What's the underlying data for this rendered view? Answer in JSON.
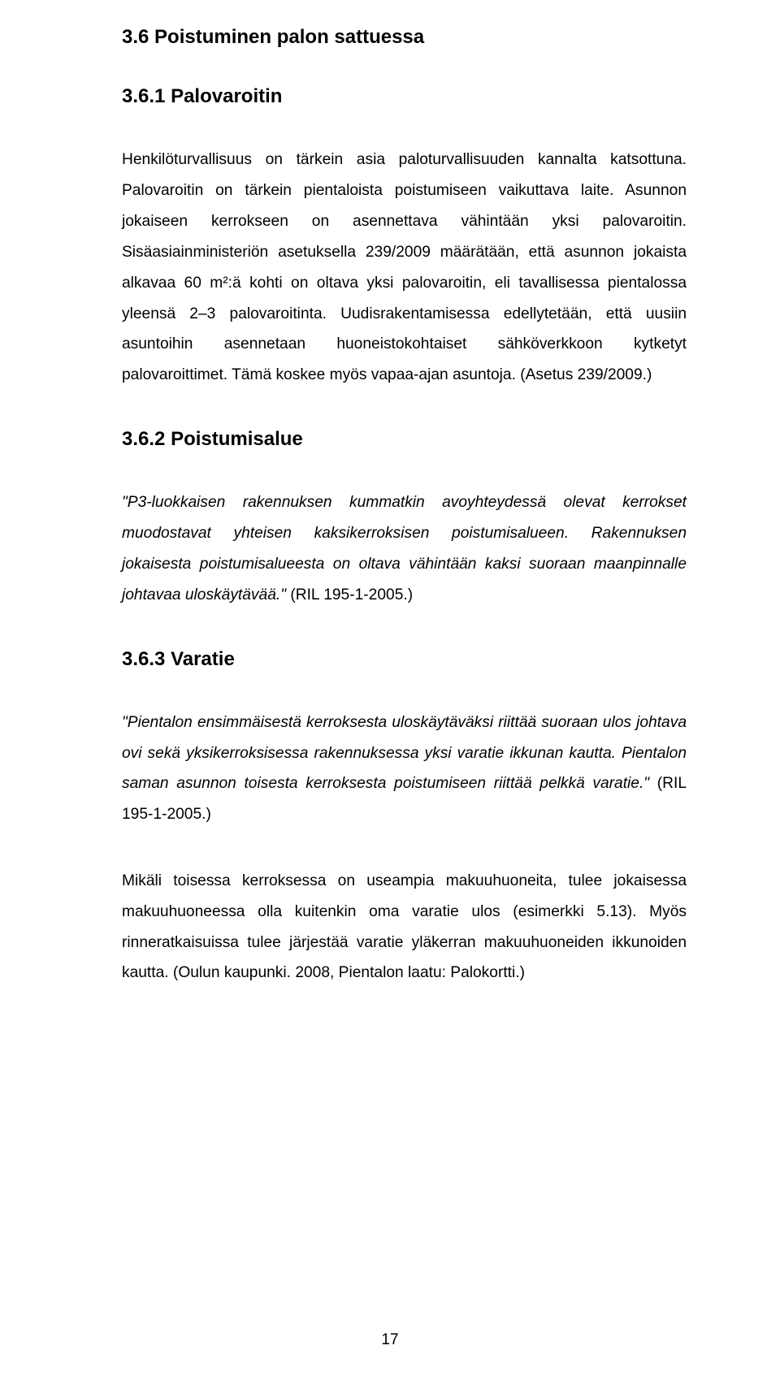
{
  "sections": {
    "s36": {
      "num": "3.6",
      "title": "Poistuminen palon sattuessa"
    },
    "s361": {
      "num": "3.6.1",
      "title": "Palovaroitin"
    },
    "s362": {
      "num": "3.6.2",
      "title": "Poistumisalue"
    },
    "s363": {
      "num": "3.6.3",
      "title": "Varatie"
    }
  },
  "paragraphs": {
    "p1": "Henkilöturvallisuus on tärkein asia paloturvallisuuden kannalta katsottuna. Palovaroitin on tärkein pientaloista poistumiseen vaikuttava laite. Asunnon jokaiseen kerrokseen on asennettava vähintään yksi palovaroitin. Sisäasiainministeriön asetuksella 239/2009 määrätään, että asunnon jokaista alkavaa 60 m²:ä kohti on oltava yksi palovaroitin, eli tavallisessa pientalossa yleensä 2–3 palovaroitinta. Uudisrakentamisessa edellytetään, että uusiin asuntoihin asennetaan huoneistokohtaiset sähköverkkoon kytketyt palovaroittimet. Tämä koskee myös vapaa-ajan asuntoja. (Asetus 239/2009.)",
    "p2_italic": "\"P3-luokkaisen rakennuksen kummatkin avoyhteydessä olevat kerrokset muodostavat yhteisen kaksikerroksisen poistumisalueen. Rakennuksen jokaisesta poistumisalueesta on oltava vähintään kaksi suoraan maanpinnalle johtavaa uloskäytävää.\"",
    "p2_tail": " (RIL 195-1-2005.)",
    "p3_italic": "\"Pientalon ensimmäisestä kerroksesta uloskäytäväksi riittää suoraan ulos johtava ovi sekä yksikerroksisessa rakennuksessa yksi varatie ikkunan kautta. Pientalon saman asunnon toisesta kerroksesta poistumiseen riittää pelkkä varatie.\"",
    "p3_tail": " (RIL 195-1-2005.)",
    "p4": "Mikäli toisessa kerroksessa on useampia makuuhuoneita, tulee jokaisessa makuuhuoneessa olla kuitenkin oma varatie ulos (esimerkki 5.13). Myös rinneratkaisuissa tulee järjestää varatie yläkerran makuuhuoneiden ikkunoiden kautta. (Oulun kaupunki. 2008, Pientalon laatu: Palokortti.)"
  },
  "pageNumber": "17"
}
